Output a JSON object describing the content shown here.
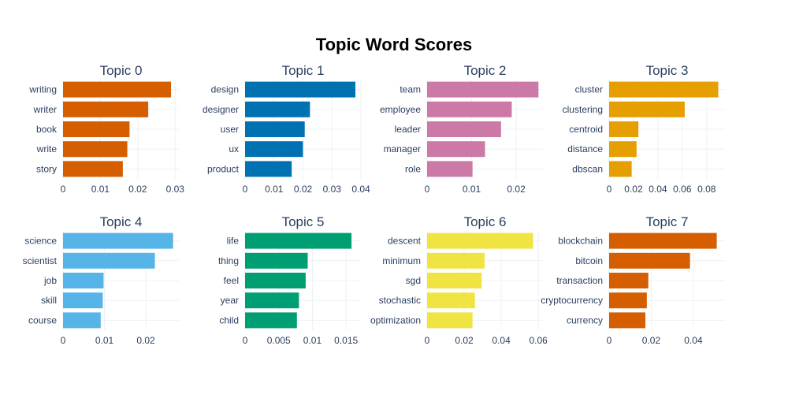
{
  "chart_data": {
    "type": "bar",
    "orientation": "horizontal",
    "title": "Topic Word Scores",
    "grid": true,
    "panels": [
      {
        "title": "Topic 0",
        "color": "#D55E00",
        "categories": [
          "writing",
          "writer",
          "book",
          "write",
          "story"
        ],
        "values": [
          0.0289,
          0.0228,
          0.0178,
          0.0172,
          0.016
        ],
        "xlim": [
          0,
          0.031
        ],
        "xticks": [
          0,
          0.01,
          0.02,
          0.03
        ],
        "xtick_labels": [
          "0",
          "0.01",
          "0.02",
          "0.03"
        ]
      },
      {
        "title": "Topic 1",
        "color": "#0072B2",
        "categories": [
          "design",
          "designer",
          "user",
          "ux",
          "product"
        ],
        "values": [
          0.0381,
          0.0224,
          0.0206,
          0.02,
          0.0161
        ],
        "xlim": [
          0,
          0.04
        ],
        "xticks": [
          0,
          0.01,
          0.02,
          0.03,
          0.04
        ],
        "xtick_labels": [
          "0",
          "0.01",
          "0.02",
          "0.03",
          "0.04"
        ]
      },
      {
        "title": "Topic 2",
        "color": "#CC79A7",
        "categories": [
          "team",
          "employee",
          "leader",
          "manager",
          "role"
        ],
        "values": [
          0.025,
          0.019,
          0.0166,
          0.013,
          0.0102
        ],
        "xlim": [
          0,
          0.026
        ],
        "xticks": [
          0,
          0.01,
          0.02
        ],
        "xtick_labels": [
          "0",
          "0.01",
          "0.02"
        ]
      },
      {
        "title": "Topic 3",
        "color": "#E69F00",
        "categories": [
          "cluster",
          "clustering",
          "centroid",
          "distance",
          "dbscan"
        ],
        "values": [
          0.0895,
          0.062,
          0.024,
          0.0225,
          0.0185
        ],
        "xlim": [
          0,
          0.095
        ],
        "xticks": [
          0,
          0.02,
          0.04,
          0.06,
          0.08
        ],
        "xtick_labels": [
          "0",
          "0.02",
          "0.04",
          "0.06",
          "0.08"
        ]
      },
      {
        "title": "Topic 4",
        "color": "#56B4E9",
        "categories": [
          "science",
          "scientist",
          "job",
          "skill",
          "course"
        ],
        "values": [
          0.0266,
          0.0222,
          0.0098,
          0.0096,
          0.0091
        ],
        "xlim": [
          0,
          0.028
        ],
        "xticks": [
          0,
          0.01,
          0.02
        ],
        "xtick_labels": [
          "0",
          "0.01",
          "0.02"
        ]
      },
      {
        "title": "Topic 5",
        "color": "#009E73",
        "categories": [
          "life",
          "thing",
          "feel",
          "year",
          "child"
        ],
        "values": [
          0.0158,
          0.0093,
          0.009,
          0.008,
          0.0077
        ],
        "xlim": [
          0,
          0.0172
        ],
        "xticks": [
          0,
          0.005,
          0.01,
          0.015
        ],
        "xtick_labels": [
          "0",
          "0.005",
          "0.01",
          "0.015"
        ]
      },
      {
        "title": "Topic 6",
        "color": "#F0E442",
        "categories": [
          "descent",
          "minimum",
          "sgd",
          "stochastic",
          "optimization"
        ],
        "values": [
          0.0572,
          0.031,
          0.0295,
          0.0258,
          0.0245
        ],
        "xlim": [
          0,
          0.0625
        ],
        "xticks": [
          0,
          0.02,
          0.04,
          0.06
        ],
        "xtick_labels": [
          "0",
          "0.02",
          "0.04",
          "0.06"
        ]
      },
      {
        "title": "Topic 7",
        "color": "#D55E00",
        "categories": [
          "blockchain",
          "bitcoin",
          "transaction",
          "cryptocurrency",
          "currency"
        ],
        "values": [
          0.0511,
          0.0384,
          0.0186,
          0.0179,
          0.0172
        ],
        "xlim": [
          0,
          0.055
        ],
        "xticks": [
          0,
          0.02,
          0.04
        ],
        "xtick_labels": [
          "0",
          "0.02",
          "0.04"
        ]
      }
    ]
  }
}
